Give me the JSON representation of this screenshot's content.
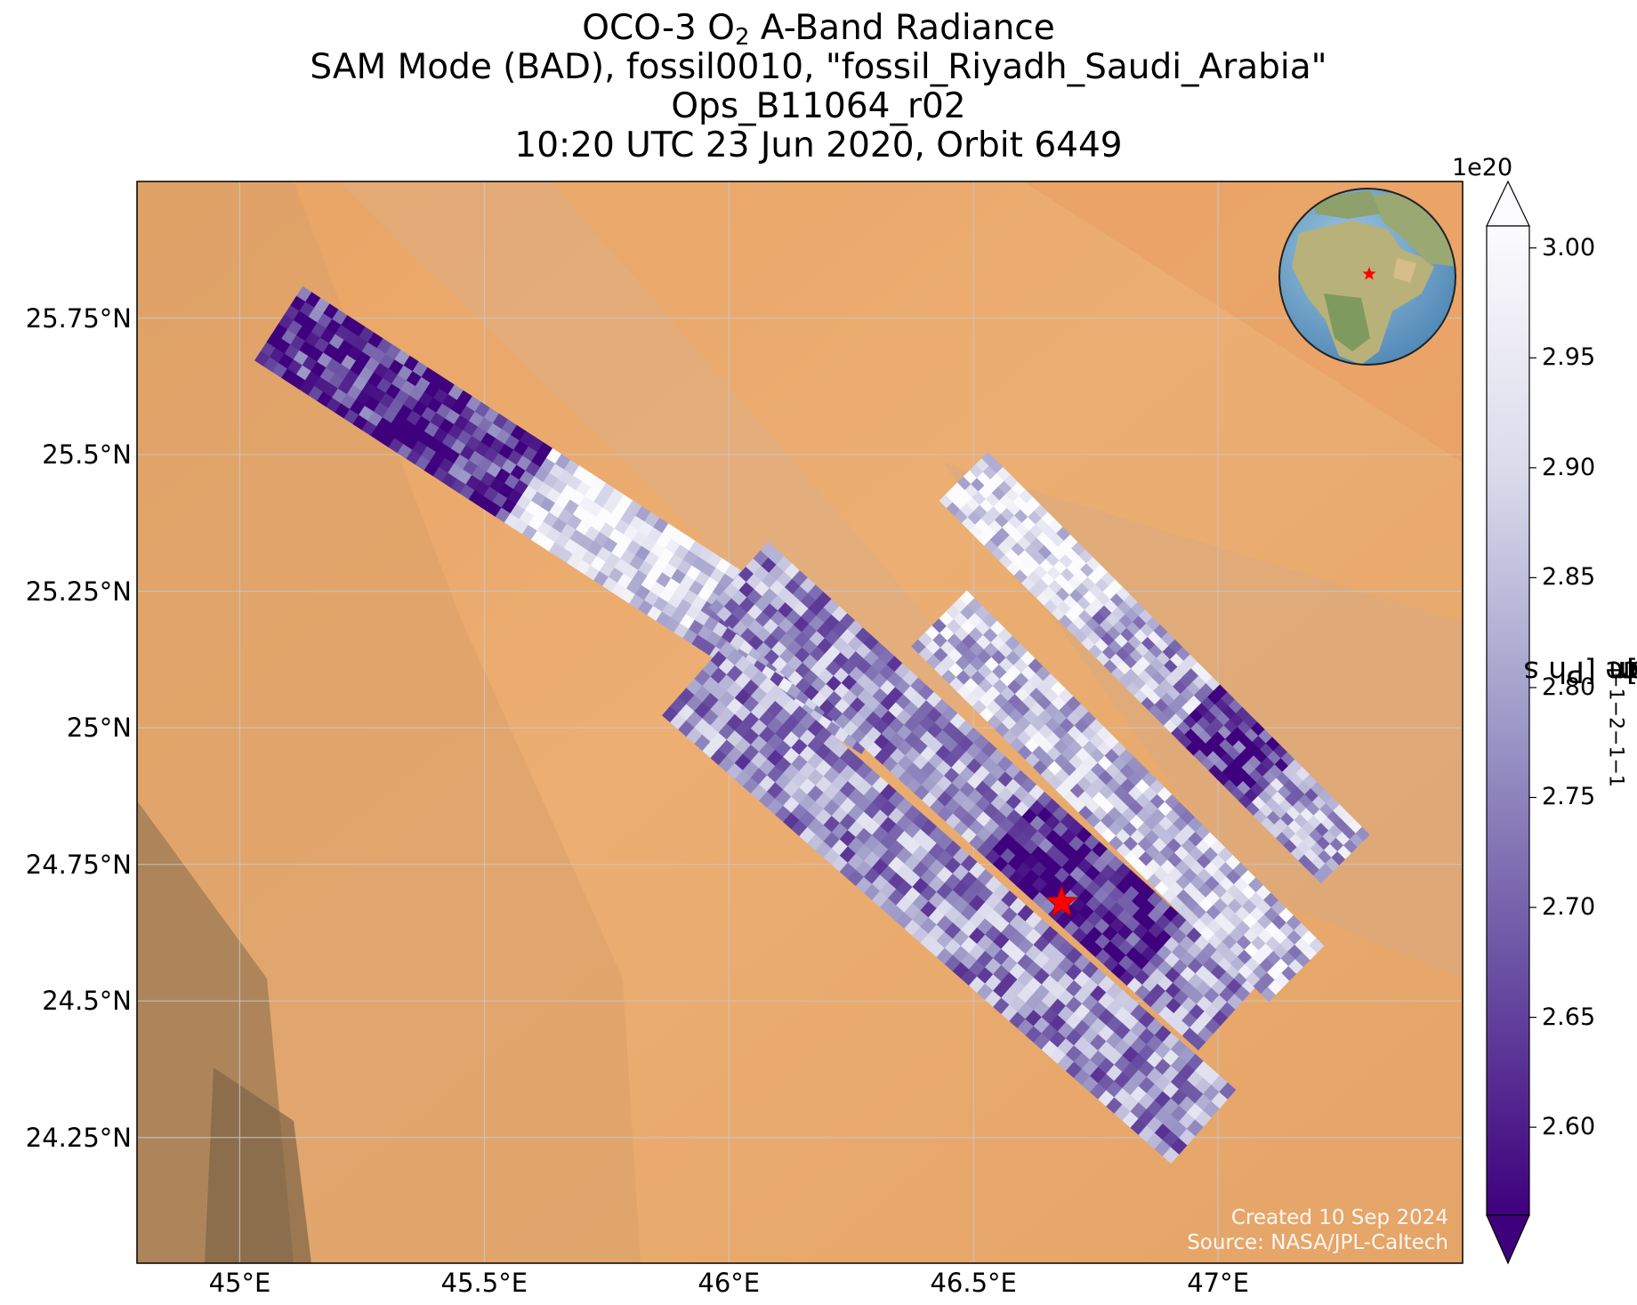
{
  "title": {
    "line1_pre": "OCO-3 O",
    "line1_sub": "2",
    "line1_post": " A-Band Radiance",
    "line2": "SAM Mode (BAD), fossil0010, \"fossil_Riyadh_Saudi_Arabia\"",
    "line3": "Ops_B11064_r02",
    "line4": "10:20 UTC 23 Jun 2020, Orbit 6449"
  },
  "map": {
    "lon_range": [
      44.79,
      47.5
    ],
    "lat_range": [
      24.02,
      26.0
    ],
    "lat_ticks": [
      "25.75°N",
      "25.5°N",
      "25.25°N",
      "25°N",
      "24.75°N",
      "24.5°N",
      "24.25°N"
    ],
    "lat_values": [
      25.75,
      25.5,
      25.25,
      25.0,
      24.75,
      24.5,
      24.25
    ],
    "lon_ticks": [
      "45°E",
      "45.5°E",
      "46°E",
      "46.5°E",
      "47°E"
    ],
    "lon_values": [
      45.0,
      45.5,
      46.0,
      46.5,
      47.0
    ],
    "gridlines": true,
    "background": "satellite imagery (desert)",
    "target_marker": {
      "lon": 46.68,
      "lat": 24.68,
      "symbol": "star",
      "color": "#ff0000"
    },
    "inset_globe": {
      "position": "top-right",
      "marker": "star",
      "marker_color": "#ff0000"
    }
  },
  "colorbar": {
    "colormap": "Purples_r",
    "min": 2.56,
    "max": 3.01,
    "exponent_label": "1e20",
    "ticks": [
      "2.60",
      "2.65",
      "2.70",
      "2.75",
      "2.80",
      "2.85",
      "2.90",
      "2.95",
      "3.00"
    ],
    "tick_values": [
      2.6,
      2.65,
      2.7,
      2.75,
      2.8,
      2.85,
      2.9,
      2.95,
      3.0
    ],
    "extend": "both",
    "label_text": "Radiance [Ph s",
    "label_exp1": "−1",
    "label_mid1": " m",
    "label_exp2": "−2",
    "label_mid2": " sr",
    "label_exp3": "−1",
    "label_mid3": "μm",
    "label_exp4": "−1",
    "label_end": "]"
  },
  "chart_data": {
    "type": "heatmap",
    "description_units": "Radiance x 1e20 Ph s^-1 m^-2 sr^-1 um^-1",
    "swaths": [
      {
        "start": [
          45.08,
          25.74
        ],
        "end": [
          46.32,
          25.02
        ],
        "half_width_lon": 0.09,
        "pattern": "dark-top-light-bottom"
      },
      {
        "start": [
          45.93,
          25.09
        ],
        "end": [
          46.97,
          24.27
        ],
        "half_width_lon": 0.1,
        "pattern": "mixed"
      },
      {
        "start": [
          46.02,
          25.28
        ],
        "end": [
          47.02,
          24.47
        ],
        "half_width_lon": 0.09,
        "pattern": "mixed-dark-center"
      },
      {
        "start": [
          46.43,
          25.2
        ],
        "end": [
          47.16,
          24.55
        ],
        "half_width_lon": 0.08,
        "pattern": "light-mixed"
      },
      {
        "start": [
          46.48,
          25.46
        ],
        "end": [
          47.26,
          24.76
        ],
        "half_width_lon": 0.07,
        "pattern": "light-dark-lower"
      }
    ],
    "value_range": [
      2.56,
      3.01
    ]
  },
  "credit": {
    "line1": "Created 10 Sep 2024",
    "line2": "Source: NASA/JPL-Caltech"
  }
}
